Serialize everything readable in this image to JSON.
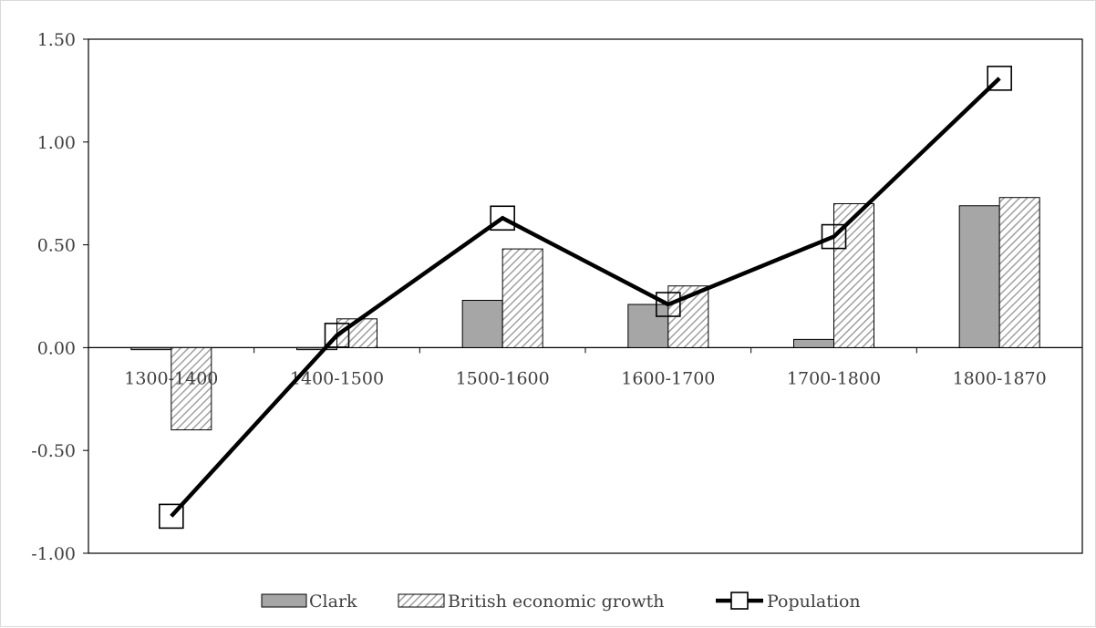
{
  "chart_data": {
    "type": "bar",
    "title": "",
    "xlabel": "",
    "ylabel": "",
    "categories": [
      "1300-1400",
      "1400-1500",
      "1500-1600",
      "1600-1700",
      "1700-1800",
      "1800-1870"
    ],
    "ylim": [
      -1.0,
      1.5
    ],
    "yticks": [
      "1.50",
      "1.00",
      "0.50",
      "0.00",
      "-0.50",
      "-1.00"
    ],
    "ytick_values": [
      1.5,
      1.0,
      0.5,
      0.0,
      -0.5,
      -1.0
    ],
    "series": [
      {
        "name": "Clark",
        "kind": "bar",
        "style": "solid-gray",
        "color": "#a6a6a6",
        "values": [
          -0.01,
          -0.01,
          0.23,
          0.21,
          0.04,
          0.69
        ]
      },
      {
        "name": "British economic growth",
        "kind": "bar",
        "style": "diagonal-hatch",
        "color": "#a6a6a6",
        "values": [
          -0.4,
          0.14,
          0.48,
          0.3,
          0.7,
          0.73
        ]
      },
      {
        "name": "Population",
        "kind": "line",
        "marker": "open-square",
        "color": "#000000",
        "values": [
          -0.82,
          0.06,
          0.63,
          0.21,
          0.54,
          1.31
        ]
      }
    ],
    "legend_position": "bottom",
    "grid": false
  }
}
